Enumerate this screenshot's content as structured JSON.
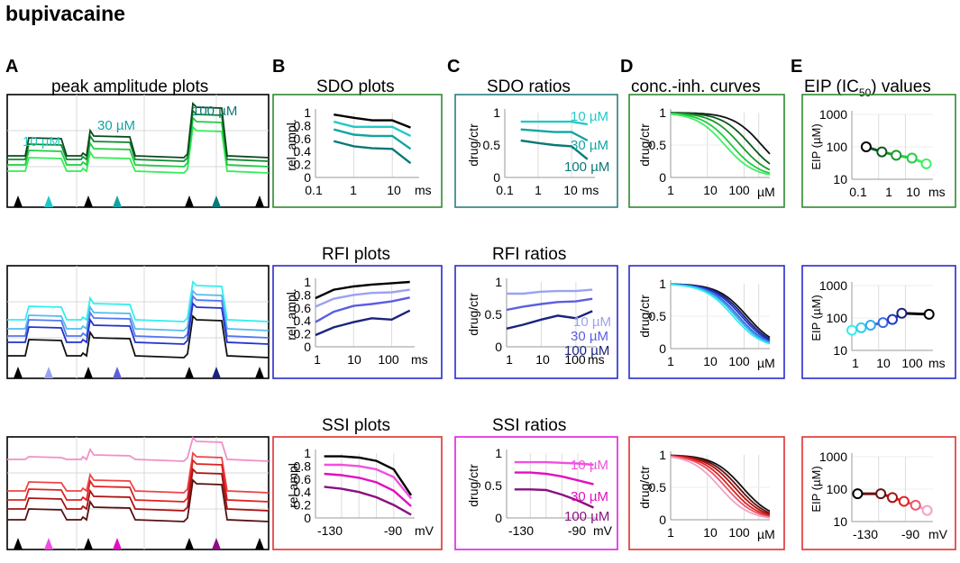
{
  "figure_title": "bupivacaine",
  "panel_labels": {
    "A": "A",
    "B": "B",
    "C": "C",
    "D": "D",
    "E": "E"
  },
  "column_titles": {
    "A": "peak amplitude plots",
    "B_sdo": "SDO plots",
    "C_sdo": "SDO ratios",
    "D": "conc.-inh. curves",
    "E_prefix": "EIP (IC",
    "E_sub": "50",
    "E_suffix": ") values",
    "B_rfi": "RFI plots",
    "C_rfi": "RFI ratios",
    "B_ssi": "SSI plots",
    "C_ssi": "SSI ratios"
  },
  "concentrations": [
    "10 µM",
    "30 µM",
    "100 µM"
  ],
  "colors": {
    "sdo_box": "#2e8b2e",
    "sdo_ratio_box": "#2b7f7f",
    "rfi_box": "#2a2ad0",
    "ssi_box": "#e03030",
    "ssi_ratio_box": "#e020e0",
    "teal_light": "#22c8c8",
    "teal_mid": "#13a3a3",
    "teal_dark": "#0b7878",
    "rfi_light": "#9aa3f0",
    "rfi_mid": "#5b5ee0",
    "rfi_dark": "#1a237e",
    "ssi_light": "#f050e0",
    "ssi_mid": "#e010c0",
    "ssi_dark": "#8a1080"
  },
  "chart_data": [
    {
      "id": "A_sdo",
      "type": "line",
      "title": "peak amplitude plots",
      "annotations": [
        "10 µM",
        "30 µM",
        "100 µM"
      ],
      "series": [
        {
          "name": "trace1",
          "color": "#33ee55",
          "values": [
            0.0
          ]
        },
        {
          "name": "trace2",
          "color": "#22cc44",
          "values": [
            0.0
          ]
        },
        {
          "name": "trace3",
          "color": "#118833",
          "values": [
            0.0
          ]
        },
        {
          "name": "trace4",
          "color": "#0a4a1a",
          "values": [
            0.0
          ]
        }
      ],
      "markers": [
        "black",
        "#22c8c8",
        "black",
        "#13a3a3",
        "black",
        "#0b7878",
        "black"
      ]
    },
    {
      "id": "B_sdo",
      "type": "line",
      "title": "SDO plots",
      "xlabel": "ms",
      "ylabel": "rel. ampl.",
      "xscale": "log",
      "x": [
        0.3,
        1,
        3,
        10,
        30
      ],
      "xticks": [
        "0.1",
        "1",
        "10"
      ],
      "yticks": [
        "0",
        "0.2",
        "0.4",
        "0.6",
        "0.8",
        "1"
      ],
      "ylim": [
        0,
        1
      ],
      "series": [
        {
          "name": "control",
          "color": "#000000",
          "values": [
            0.97,
            0.92,
            0.88,
            0.88,
            0.77
          ]
        },
        {
          "name": "10 µM",
          "color": "#22c8c8",
          "values": [
            0.86,
            0.78,
            0.78,
            0.78,
            0.64
          ]
        },
        {
          "name": "30 µM",
          "color": "#13a3a3",
          "values": [
            0.74,
            0.66,
            0.64,
            0.64,
            0.44
          ]
        },
        {
          "name": "100 µM",
          "color": "#0b7878",
          "values": [
            0.56,
            0.48,
            0.45,
            0.44,
            0.22
          ]
        }
      ]
    },
    {
      "id": "C_sdo",
      "type": "line",
      "title": "SDO ratios",
      "xlabel": "",
      "ylabel": "drug/ctr",
      "xscale": "log",
      "x": [
        0.3,
        1,
        3,
        10,
        30
      ],
      "xticks": [
        "0.1",
        "1",
        "10",
        "ms"
      ],
      "yticks": [
        "0",
        "0.5",
        "1"
      ],
      "ylim": [
        0,
        1
      ],
      "series": [
        {
          "name": "10 µM",
          "color": "#22c8c8",
          "values": [
            0.86,
            0.86,
            0.86,
            0.86,
            0.82
          ]
        },
        {
          "name": "30 µM",
          "color": "#13a3a3",
          "values": [
            0.74,
            0.72,
            0.7,
            0.7,
            0.57
          ]
        },
        {
          "name": "100 µM",
          "color": "#0b7878",
          "values": [
            0.57,
            0.53,
            0.5,
            0.48,
            0.28
          ]
        }
      ]
    },
    {
      "id": "D_sdo",
      "type": "line",
      "title": "conc.-inh. curves",
      "xlabel": "µM",
      "ylabel": "drug/ctr",
      "xscale": "log",
      "xticks": [
        "1",
        "10",
        "100"
      ],
      "yticks": [
        "0",
        "0.5",
        "1"
      ],
      "ylim": [
        0,
        1
      ],
      "series_ic50": [
        300,
        150,
        80,
        45,
        30
      ],
      "series_colors": [
        "#111111",
        "#0a5a1a",
        "#1a9a2a",
        "#22cc44",
        "#44ee66"
      ]
    },
    {
      "id": "E_sdo",
      "type": "scatter",
      "title": "EIP (IC50) values",
      "xlabel": "ms",
      "ylabel": "EIP (µM)",
      "xscale": "log",
      "yscale": "log",
      "x": [
        0.3,
        1,
        3,
        10,
        30
      ],
      "values": [
        100,
        70,
        55,
        45,
        30
      ],
      "xticks": [
        "0.1",
        "1",
        "10"
      ],
      "yticks": [
        "10",
        "100",
        "1000"
      ],
      "point_colors": [
        "#000000",
        "#0a5a1a",
        "#1a9a2a",
        "#22cc44",
        "#44ee66"
      ]
    },
    {
      "id": "A_rfi",
      "type": "line",
      "title": "",
      "series": [
        {
          "name": "trace1",
          "color": "#33eeee",
          "values": [
            0.0
          ]
        },
        {
          "name": "trace2",
          "color": "#55bbee",
          "values": [
            0.0
          ]
        },
        {
          "name": "trace3",
          "color": "#5577ee",
          "values": [
            0.0
          ]
        },
        {
          "name": "trace4",
          "color": "#2233cc",
          "values": [
            0.0
          ]
        },
        {
          "name": "trace5",
          "color": "#111111",
          "values": [
            0.0
          ]
        }
      ],
      "markers": [
        "black",
        "#9aa3f0",
        "black",
        "#5b5ee0",
        "black",
        "#1a237e",
        "black"
      ]
    },
    {
      "id": "B_rfi",
      "type": "line",
      "title": "RFI plots",
      "xlabel": "ms",
      "ylabel": "rel. ampl.",
      "xscale": "log",
      "x": [
        1,
        3,
        10,
        30,
        100,
        300
      ],
      "xticks": [
        "1",
        "10",
        "100"
      ],
      "yticks": [
        "0",
        "0.2",
        "0.4",
        "0.6",
        "0.8",
        "1"
      ],
      "ylim": [
        0,
        1
      ],
      "series": [
        {
          "name": "control",
          "color": "#000000",
          "values": [
            0.75,
            0.88,
            0.93,
            0.96,
            0.98,
            1.0
          ]
        },
        {
          "name": "10 µM",
          "color": "#9aa3f0",
          "values": [
            0.62,
            0.74,
            0.8,
            0.83,
            0.84,
            0.88
          ]
        },
        {
          "name": "30 µM",
          "color": "#5b5ee0",
          "values": [
            0.38,
            0.54,
            0.63,
            0.66,
            0.7,
            0.76
          ]
        },
        {
          "name": "100 µM",
          "color": "#1a237e",
          "values": [
            0.18,
            0.3,
            0.38,
            0.44,
            0.42,
            0.56
          ]
        }
      ]
    },
    {
      "id": "C_rfi",
      "type": "line",
      "title": "RFI ratios",
      "xlabel": "ms",
      "ylabel": "drug/ctr",
      "xscale": "log",
      "x": [
        1,
        3,
        10,
        30,
        100,
        300
      ],
      "xticks": [
        "1",
        "10",
        "100"
      ],
      "yticks": [
        "0",
        "0.5",
        "1"
      ],
      "ylim": [
        0,
        1
      ],
      "series": [
        {
          "name": "10 µM",
          "color": "#9aa3f0",
          "values": [
            0.82,
            0.82,
            0.85,
            0.86,
            0.86,
            0.88
          ]
        },
        {
          "name": "30 µM",
          "color": "#5b5ee0",
          "values": [
            0.57,
            0.62,
            0.66,
            0.69,
            0.7,
            0.74
          ]
        },
        {
          "name": "100 µM",
          "color": "#1a237e",
          "values": [
            0.28,
            0.34,
            0.42,
            0.48,
            0.44,
            0.55
          ]
        }
      ]
    },
    {
      "id": "D_rfi",
      "type": "line",
      "title": "",
      "xlabel": "µM",
      "ylabel": "drug/ctr",
      "xscale": "log",
      "xticks": [
        "1",
        "10",
        "100"
      ],
      "yticks": [
        "0",
        "0.5",
        "1"
      ],
      "ylim": [
        0,
        1
      ],
      "series_ic50": [
        120,
        100,
        85,
        70,
        60,
        50
      ],
      "series_colors": [
        "#111111",
        "#1a237e",
        "#2233cc",
        "#3a6ae0",
        "#33aaee",
        "#33eeee"
      ]
    },
    {
      "id": "E_rfi",
      "type": "scatter",
      "title": "",
      "xlabel": "ms",
      "ylabel": "EIP (µM)",
      "xscale": "log",
      "yscale": "log",
      "x": [
        1,
        2,
        4,
        10,
        20,
        40,
        300
      ],
      "values": [
        42,
        50,
        60,
        72,
        90,
        140,
        130
      ],
      "xticks": [
        "1",
        "10",
        "100"
      ],
      "yticks": [
        "10",
        "100",
        "1000"
      ],
      "point_colors": [
        "#33eeee",
        "#33ccee",
        "#33aaee",
        "#3a6ae0",
        "#2233cc",
        "#1a237e",
        "#000000"
      ]
    },
    {
      "id": "A_ssi",
      "type": "line",
      "title": "",
      "series": [
        {
          "name": "trace1",
          "color": "#f090c8",
          "values": [
            0.0
          ]
        },
        {
          "name": "trace2",
          "color": "#ee4444",
          "values": [
            0.0
          ]
        },
        {
          "name": "trace3",
          "color": "#dd2222",
          "values": [
            0.0
          ]
        },
        {
          "name": "trace4",
          "color": "#aa1111",
          "values": [
            0.0
          ]
        },
        {
          "name": "trace5",
          "color": "#551111",
          "values": [
            0.0
          ]
        }
      ],
      "markers": [
        "black",
        "#f050e0",
        "black",
        "#e010c0",
        "black",
        "#8a1080",
        "black"
      ]
    },
    {
      "id": "B_ssi",
      "type": "line",
      "title": "SSI plots",
      "xlabel": "mV",
      "ylabel": "rel ampl",
      "xscale": "linear",
      "x": [
        -130,
        -120,
        -110,
        -100,
        -90,
        -80
      ],
      "xticks": [
        "-130",
        "-90"
      ],
      "yticks": [
        "0",
        "0.2",
        "0.4",
        "0.6",
        "0.8",
        "1"
      ],
      "ylim": [
        0,
        1
      ],
      "series": [
        {
          "name": "control",
          "color": "#000000",
          "values": [
            0.95,
            0.95,
            0.93,
            0.88,
            0.75,
            0.35
          ]
        },
        {
          "name": "10 µM",
          "color": "#f050e0",
          "values": [
            0.82,
            0.82,
            0.8,
            0.75,
            0.63,
            0.3
          ]
        },
        {
          "name": "30 µM",
          "color": "#e010c0",
          "values": [
            0.68,
            0.66,
            0.62,
            0.55,
            0.42,
            0.18
          ]
        },
        {
          "name": "100 µM",
          "color": "#8a1080",
          "values": [
            0.48,
            0.45,
            0.4,
            0.32,
            0.2,
            0.05
          ]
        }
      ]
    },
    {
      "id": "C_ssi",
      "type": "line",
      "title": "SSI ratios",
      "xlabel": "mV",
      "ylabel": "drug/ctr",
      "xscale": "linear",
      "x": [
        -130,
        -120,
        -110,
        -100,
        -90,
        -80
      ],
      "xticks": [
        "-130",
        "-90"
      ],
      "yticks": [
        "0",
        "0.5",
        "1"
      ],
      "ylim": [
        0,
        1
      ],
      "series": [
        {
          "name": "10 µM",
          "color": "#f050e0",
          "values": [
            0.86,
            0.86,
            0.86,
            0.85,
            0.84,
            0.82
          ]
        },
        {
          "name": "30 µM",
          "color": "#e010c0",
          "values": [
            0.7,
            0.7,
            0.68,
            0.64,
            0.58,
            0.52
          ]
        },
        {
          "name": "100 µM",
          "color": "#8a1080",
          "values": [
            0.44,
            0.44,
            0.43,
            0.36,
            0.27,
            0.16
          ]
        }
      ]
    },
    {
      "id": "D_ssi",
      "type": "line",
      "title": "",
      "xlabel": "µM",
      "ylabel": "drug/ctr",
      "xscale": "log",
      "xticks": [
        "1",
        "10",
        "100"
      ],
      "yticks": [
        "0",
        "0.5",
        "1"
      ],
      "ylim": [
        0,
        1
      ],
      "series_ic50": [
        90,
        70,
        55,
        42,
        32,
        22
      ],
      "series_colors": [
        "#111111",
        "#661111",
        "#aa1111",
        "#dd2222",
        "#ee5566",
        "#f5a0c8"
      ]
    },
    {
      "id": "E_ssi",
      "type": "scatter",
      "title": "",
      "xlabel": "mV",
      "ylabel": "EIP (µM)",
      "xscale": "linear",
      "yscale": "log",
      "x": [
        -130,
        -110,
        -100,
        -90,
        -80,
        -70
      ],
      "values": [
        72,
        72,
        55,
        42,
        32,
        22
      ],
      "xticks": [
        "-130",
        "-90"
      ],
      "yticks": [
        "10",
        "100",
        "1000"
      ],
      "point_colors": [
        "#000000",
        "#661111",
        "#aa1111",
        "#dd2222",
        "#ee5566",
        "#f5a0c8"
      ]
    }
  ]
}
